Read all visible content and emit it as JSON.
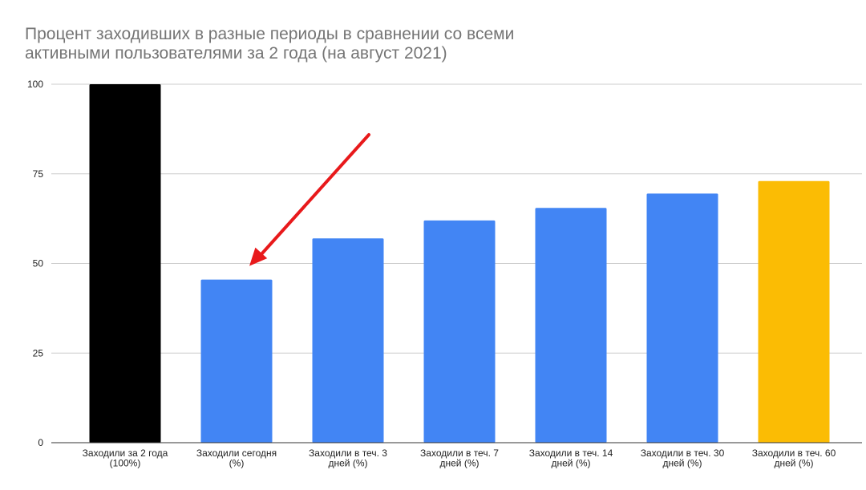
{
  "chart_data": {
    "type": "bar",
    "title_lines": [
      "Процент заходивших в разные периоды в сравнении со всеми",
      "активными пользователями за 2 года (на август 2021)"
    ],
    "categories": [
      [
        "Заходили за 2 года",
        "(100%)"
      ],
      [
        "Заходили сегодня",
        "(%)"
      ],
      [
        "Заходили в теч. 3",
        "дней (%)"
      ],
      [
        "Заходили в теч. 7",
        "дней (%)"
      ],
      [
        "Заходили в теч. 14",
        "дней (%)"
      ],
      [
        "Заходили в теч. 30",
        "дней (%)"
      ],
      [
        "Заходили в теч. 60",
        "дней (%)"
      ]
    ],
    "values": [
      100,
      45.5,
      57,
      62,
      65.5,
      69.5,
      73
    ],
    "bar_colors": [
      "#000000",
      "#4285f4",
      "#4285f4",
      "#4285f4",
      "#4285f4",
      "#4285f4",
      "#fbbc04"
    ],
    "ylim": [
      0,
      100
    ],
    "yticks": [
      0,
      25,
      50,
      75,
      100
    ],
    "grid": true,
    "legend": "none",
    "annotation": {
      "type": "arrow",
      "color": "#e8191b",
      "points_to_category_index": 1
    }
  }
}
